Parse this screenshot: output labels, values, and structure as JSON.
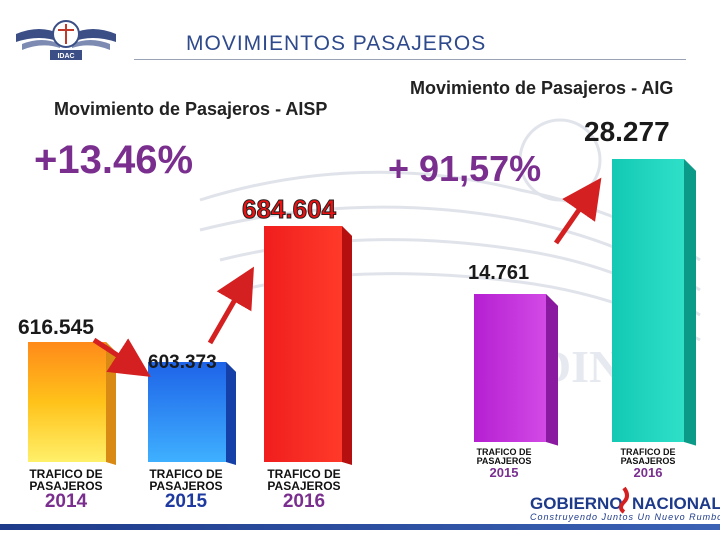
{
  "page": {
    "title": "MOVIMIENTOS PASAJEROS",
    "logo_text": "IDAC",
    "watermark_text": "IDINAC",
    "footer": {
      "brand_left": "GOBIERNO",
      "brand_right": "NACIONAL",
      "tagline": "Construyendo Juntos Un Nuevo Rumbo"
    }
  },
  "colors": {
    "accent_purple": "#7a2f8f",
    "arrow_red": "#d42020",
    "footer_blue": "#1e3a8a"
  },
  "chart_data": [
    {
      "type": "bar",
      "title": "Movimiento de Pasajeros - AISP",
      "annotation": "+13.46%",
      "categories": [
        "2014",
        "2015",
        "2016"
      ],
      "category_caption": "TRAFICO DE PASAJEROS",
      "values": [
        616545,
        603373,
        684604
      ],
      "value_labels": [
        "616.545",
        "603.373",
        "684.604"
      ],
      "bar_colors": [
        "gradient-yellow-red",
        "gradient-blue",
        "red"
      ],
      "ylim": [
        0,
        700000
      ],
      "grid": false,
      "legend": "none"
    },
    {
      "type": "bar",
      "title": "Movimiento de Pasajeros - AIG",
      "annotation": "+ 91,57%",
      "categories": [
        "2015",
        "2016"
      ],
      "category_caption": "TRAFICO DE PASAJEROS",
      "values": [
        14761,
        28277
      ],
      "value_labels": [
        "14.761",
        "28.277"
      ],
      "bar_colors": [
        "purple",
        "teal"
      ],
      "ylim": [
        0,
        30000
      ],
      "grid": false,
      "legend": "none"
    }
  ]
}
